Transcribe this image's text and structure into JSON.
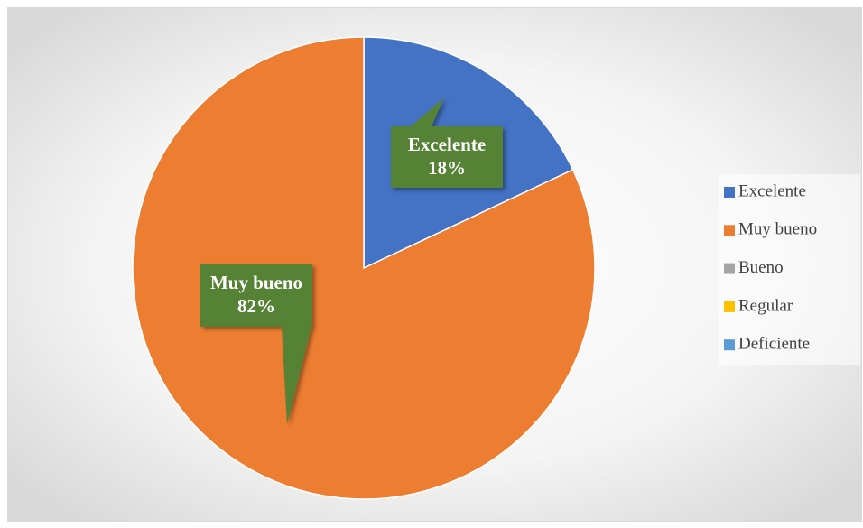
{
  "chart_data": {
    "type": "pie",
    "categories": [
      "Excelente",
      "Muy bueno",
      "Bueno",
      "Regular",
      "Deficiente"
    ],
    "values": [
      18,
      82,
      0,
      0,
      0
    ],
    "value_labels": [
      "18%",
      "82%",
      null,
      null,
      null
    ],
    "colors": [
      "#4472c4",
      "#ed7d31",
      "#a5a5a5",
      "#ffc000",
      "#5b9bd5"
    ],
    "label_color": "#548235",
    "legend": "right"
  }
}
